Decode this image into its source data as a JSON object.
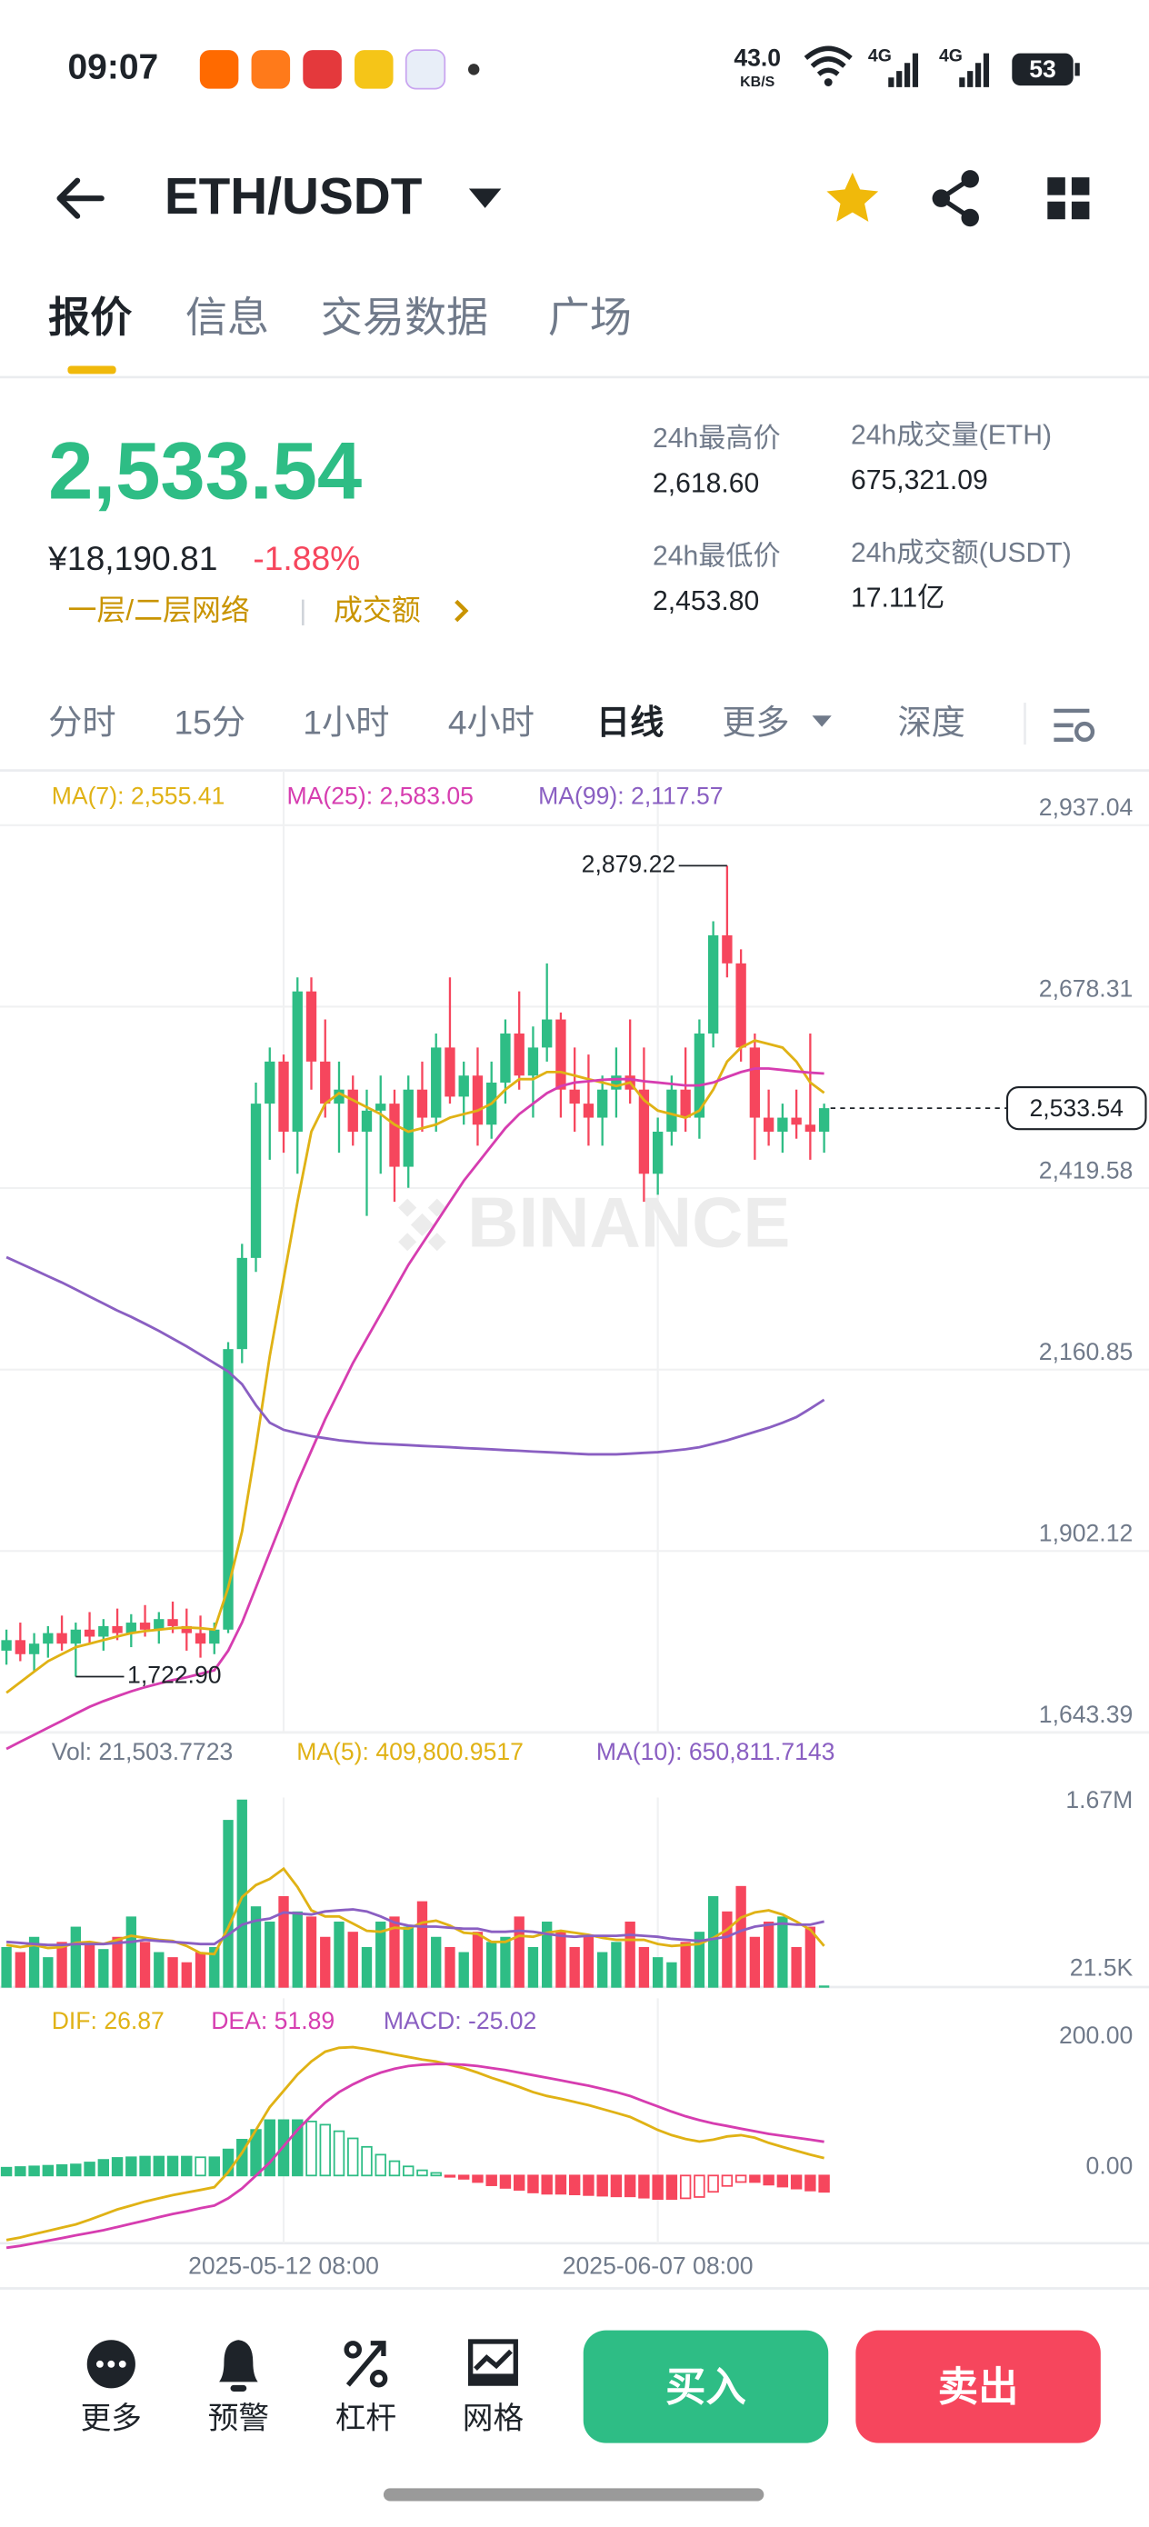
{
  "status_bar": {
    "time": "09:07",
    "net_speed": "43.0",
    "net_unit": "KB/S",
    "signal_1": "4G",
    "signal_2": "4G",
    "battery": "53"
  },
  "header": {
    "pair": "ETH/USDT"
  },
  "tabs": [
    "报价",
    "信息",
    "交易数据",
    "广场"
  ],
  "ticker": {
    "price": "2,533.54",
    "price_cny": "¥18,190.81",
    "change": "-1.88%",
    "tags": [
      "一层/二层网络",
      "成交额"
    ],
    "stats": [
      {
        "label": "24h最高价",
        "value": "2,618.60"
      },
      {
        "label": "24h成交量(ETH)",
        "value": "675,321.09"
      },
      {
        "label": "24h最低价",
        "value": "2,453.80"
      },
      {
        "label": "24h成交额(USDT)",
        "value": "17.11亿"
      }
    ]
  },
  "intervals": [
    "分时",
    "15分",
    "1小时",
    "4小时",
    "日线",
    "更多",
    "深度"
  ],
  "chart_data": [
    {
      "type": "candlestick",
      "watermark": "BINANCE",
      "up_color": "#2ebd85",
      "down_color": "#f6465d",
      "grid": true,
      "ylim": [
        1643.39,
        2937.04
      ],
      "yticks": [
        {
          "value": 2937.04,
          "label": "2,937.04"
        },
        {
          "value": 2678.31,
          "label": "2,678.31"
        },
        {
          "value": 2419.58,
          "label": "2,419.58"
        },
        {
          "value": 2160.85,
          "label": "2,160.85"
        },
        {
          "value": 1902.12,
          "label": "1,902.12"
        },
        {
          "value": 1643.39,
          "label": "1,643.39"
        }
      ],
      "xticks": [
        {
          "value": 20,
          "label": "2025-05-12 08:00"
        },
        {
          "value": 47,
          "label": "2025-06-07 08:00"
        }
      ],
      "ohlc": [
        [
          1760,
          1790,
          1740,
          1775
        ],
        [
          1775,
          1800,
          1745,
          1755
        ],
        [
          1755,
          1785,
          1730,
          1770
        ],
        [
          1770,
          1795,
          1750,
          1785
        ],
        [
          1785,
          1810,
          1760,
          1770
        ],
        [
          1770,
          1800,
          1722.9,
          1790
        ],
        [
          1790,
          1815,
          1770,
          1780
        ],
        [
          1780,
          1805,
          1760,
          1795
        ],
        [
          1795,
          1820,
          1775,
          1785
        ],
        [
          1785,
          1812,
          1765,
          1800
        ],
        [
          1800,
          1825,
          1780,
          1790
        ],
        [
          1790,
          1815,
          1770,
          1805
        ],
        [
          1805,
          1830,
          1785,
          1795
        ],
        [
          1795,
          1820,
          1760,
          1785
        ],
        [
          1785,
          1810,
          1750,
          1770
        ],
        [
          1770,
          1800,
          1755,
          1790
        ],
        [
          1790,
          2200,
          1785,
          2190
        ],
        [
          2190,
          2340,
          2170,
          2320
        ],
        [
          2320,
          2570,
          2300,
          2540
        ],
        [
          2540,
          2620,
          2460,
          2600
        ],
        [
          2600,
          2610,
          2470,
          2500
        ],
        [
          2500,
          2720,
          2440,
          2700
        ],
        [
          2700,
          2720,
          2560,
          2600
        ],
        [
          2600,
          2660,
          2520,
          2540
        ],
        [
          2540,
          2600,
          2470,
          2560
        ],
        [
          2560,
          2580,
          2480,
          2500
        ],
        [
          2500,
          2560,
          2380,
          2530
        ],
        [
          2530,
          2580,
          2440,
          2540
        ],
        [
          2540,
          2560,
          2400,
          2450
        ],
        [
          2450,
          2580,
          2420,
          2560
        ],
        [
          2560,
          2600,
          2500,
          2520
        ],
        [
          2520,
          2640,
          2500,
          2620
        ],
        [
          2620,
          2720,
          2540,
          2550
        ],
        [
          2550,
          2600,
          2510,
          2580
        ],
        [
          2580,
          2620,
          2480,
          2510
        ],
        [
          2510,
          2600,
          2490,
          2570
        ],
        [
          2570,
          2660,
          2540,
          2640
        ],
        [
          2640,
          2700,
          2560,
          2580
        ],
        [
          2580,
          2650,
          2520,
          2620
        ],
        [
          2620,
          2740,
          2600,
          2660
        ],
        [
          2660,
          2670,
          2520,
          2560
        ],
        [
          2560,
          2620,
          2500,
          2540
        ],
        [
          2540,
          2610,
          2480,
          2520
        ],
        [
          2520,
          2580,
          2480,
          2560
        ],
        [
          2560,
          2620,
          2520,
          2580
        ],
        [
          2580,
          2660,
          2540,
          2560
        ],
        [
          2560,
          2620,
          2400,
          2440
        ],
        [
          2440,
          2520,
          2410,
          2500
        ],
        [
          2500,
          2580,
          2480,
          2560
        ],
        [
          2560,
          2620,
          2500,
          2520
        ],
        [
          2520,
          2660,
          2490,
          2640
        ],
        [
          2640,
          2800,
          2620,
          2780
        ],
        [
          2780,
          2879.22,
          2720,
          2740
        ],
        [
          2740,
          2760,
          2600,
          2620
        ],
        [
          2620,
          2640,
          2460,
          2520
        ],
        [
          2520,
          2560,
          2480,
          2500
        ],
        [
          2500,
          2540,
          2470,
          2520
        ],
        [
          2520,
          2560,
          2490,
          2510
        ],
        [
          2510,
          2640,
          2460,
          2500
        ],
        [
          2500,
          2540,
          2470,
          2533.54
        ]
      ],
      "last_price_label": "2,533.54",
      "annotations": [
        {
          "label": "2,879.22",
          "value": 2879.22,
          "of": "high"
        },
        {
          "label": "1,722.90",
          "value": 1722.9,
          "of": "low"
        }
      ],
      "series": [
        {
          "name": "MA(7)",
          "color": "#e0b215",
          "current_label": "2,555.41",
          "values": [
            1700,
            1715,
            1730,
            1745,
            1755,
            1765,
            1770,
            1775,
            1780,
            1785,
            1788,
            1790,
            1792,
            1793,
            1792,
            1790,
            1850,
            1930,
            2050,
            2180,
            2290,
            2400,
            2500,
            2540,
            2555,
            2545,
            2535,
            2525,
            2510,
            2500,
            2505,
            2510,
            2520,
            2525,
            2530,
            2540,
            2560,
            2575,
            2575,
            2585,
            2585,
            2580,
            2575,
            2570,
            2565,
            2570,
            2545,
            2530,
            2525,
            2520,
            2530,
            2560,
            2600,
            2620,
            2630,
            2625,
            2620,
            2600,
            2570,
            2555.41
          ]
        },
        {
          "name": "MA(25)",
          "color": "#d63db0",
          "current_label": "2,583.05",
          "values": [
            1620,
            1630,
            1640,
            1650,
            1660,
            1670,
            1680,
            1688,
            1695,
            1702,
            1708,
            1713,
            1718,
            1722,
            1727,
            1732,
            1760,
            1800,
            1850,
            1900,
            1950,
            2000,
            2045,
            2090,
            2130,
            2170,
            2205,
            2240,
            2275,
            2310,
            2340,
            2370,
            2400,
            2430,
            2455,
            2480,
            2505,
            2525,
            2540,
            2555,
            2565,
            2570,
            2572,
            2574,
            2575,
            2575,
            2572,
            2570,
            2568,
            2566,
            2566,
            2570,
            2578,
            2585,
            2590,
            2590,
            2588,
            2586,
            2584,
            2583.05
          ]
        },
        {
          "name": "MA(99)",
          "color": "#8a5fc2",
          "current_label": "2,117.57",
          "values": [
            2321,
            2312,
            2303,
            2294,
            2285,
            2275,
            2265,
            2255,
            2245,
            2236,
            2226,
            2216,
            2205,
            2194,
            2182,
            2170,
            2158,
            2140,
            2110,
            2085,
            2075,
            2070,
            2066,
            2063,
            2060,
            2058,
            2056,
            2055,
            2054,
            2053,
            2052,
            2051,
            2050,
            2049,
            2048,
            2047,
            2046,
            2045,
            2044,
            2043,
            2042,
            2041,
            2040,
            2040,
            2040,
            2041,
            2042,
            2043,
            2045,
            2047,
            2050,
            2055,
            2060,
            2066,
            2072,
            2078,
            2085,
            2093,
            2105,
            2117.57
          ]
        }
      ]
    },
    {
      "type": "bar",
      "up_color": "#2ebd85",
      "down_color": "#f6465d",
      "grid": false,
      "ylim": [
        0,
        1870000
      ],
      "yticks": [
        {
          "value": 1670000,
          "label": "1.67M"
        },
        {
          "value": 21500,
          "label": "21.5K"
        }
      ],
      "series": [
        {
          "name": "Vol",
          "color": "#707a8a",
          "current_label": "21,503.7723",
          "values": [
            400000,
            350000,
            500000,
            300000,
            450000,
            600000,
            420000,
            380000,
            500000,
            700000,
            450000,
            350000,
            300000,
            250000,
            350000,
            400000,
            1650000,
            1850000,
            800000,
            650000,
            900000,
            750000,
            700000,
            500000,
            650000,
            550000,
            400000,
            650000,
            700000,
            600000,
            850000,
            500000,
            400000,
            350000,
            550000,
            450000,
            500000,
            700000,
            400000,
            650000,
            550000,
            400000,
            500000,
            350000,
            450000,
            650000,
            400000,
            300000,
            250000,
            450000,
            550000,
            900000,
            750000,
            1000000,
            500000,
            650000,
            700000,
            400000,
            600000,
            21503.7723
          ]
        },
        {
          "name": "MA(5)",
          "color": "#e0b215",
          "current_label": "409,800.9517",
          "values": [
            420000,
            400000,
            420000,
            390000,
            400000,
            440000,
            450000,
            430000,
            470000,
            510000,
            490000,
            470000,
            460000,
            410000,
            340000,
            330000,
            590000,
            890000,
            1010000,
            1070000,
            1170000,
            990000,
            760000,
            700000,
            700000,
            630000,
            560000,
            550000,
            590000,
            580000,
            640000,
            660000,
            610000,
            540000,
            530000,
            450000,
            450000,
            510000,
            500000,
            540000,
            560000,
            540000,
            520000,
            490000,
            470000,
            470000,
            470000,
            430000,
            410000,
            420000,
            430000,
            490000,
            570000,
            690000,
            740000,
            760000,
            720000,
            650000,
            570000,
            409800.9517
          ]
        },
        {
          "name": "MA(10)",
          "color": "#8a5fc2",
          "current_label": "650,811.7143",
          "values": [
            450000,
            440000,
            430000,
            420000,
            420000,
            430000,
            430000,
            430000,
            440000,
            450000,
            470000,
            460000,
            450000,
            440000,
            430000,
            430000,
            520000,
            620000,
            660000,
            680000,
            740000,
            730000,
            720000,
            750000,
            760000,
            770000,
            750000,
            700000,
            640000,
            610000,
            600000,
            600000,
            590000,
            580000,
            580000,
            550000,
            550000,
            560000,
            550000,
            530000,
            510000,
            500000,
            510000,
            510000,
            510000,
            520000,
            510000,
            500000,
            480000,
            470000,
            460000,
            480000,
            500000,
            560000,
            600000,
            620000,
            630000,
            620000,
            620000,
            650811.7143
          ]
        }
      ]
    },
    {
      "type": "macd",
      "up_color": "#2ebd85",
      "down_color": "#f6465d",
      "grid": false,
      "ylim": [
        -104,
        272
      ],
      "yticks": [
        {
          "value": 200,
          "label": "200.00"
        },
        {
          "value": 0,
          "label": "0.00"
        }
      ],
      "series": [
        {
          "name": "DIF",
          "color": "#e0b215",
          "current_label": "26.87",
          "values": [
            -99,
            -95,
            -90,
            -85,
            -80,
            -75,
            -68,
            -60,
            -52,
            -46,
            -40,
            -35,
            -30,
            -26,
            -22,
            -18,
            5,
            35,
            70,
            105,
            130,
            155,
            175,
            190,
            196,
            197,
            194,
            190,
            186,
            182,
            178,
            175,
            170,
            165,
            158,
            150,
            143,
            136,
            128,
            122,
            118,
            113,
            108,
            102,
            96,
            90,
            80,
            70,
            62,
            56,
            52,
            55,
            60,
            62,
            58,
            50,
            44,
            38,
            32,
            26.87
          ]
        },
        {
          "name": "DEA",
          "color": "#d63db0",
          "current_label": "51.89",
          "values": [
            -111,
            -108,
            -104,
            -100,
            -96,
            -92,
            -88,
            -84,
            -79,
            -74,
            -69,
            -64,
            -59,
            -55,
            -50,
            -46,
            -35,
            -20,
            0,
            20,
            45,
            70,
            92,
            112,
            128,
            140,
            150,
            158,
            164,
            168,
            170,
            171,
            171,
            170,
            168,
            165,
            162,
            158,
            154,
            150,
            146,
            142,
            138,
            133,
            128,
            122,
            114,
            106,
            98,
            91,
            85,
            80,
            76,
            72,
            68,
            64,
            61,
            58,
            55,
            51.89
          ]
        },
        {
          "name": "MACD",
          "color": "#8a5fc2",
          "current_label": "-25.02",
          "values": [
            12,
            13,
            14,
            15,
            16,
            17,
            20,
            24,
            27,
            28,
            29,
            29,
            29,
            29,
            28,
            28,
            40,
            55,
            70,
            85,
            85,
            85,
            83,
            78,
            68,
            57,
            44,
            32,
            22,
            14,
            8,
            4,
            -1,
            -5,
            -10,
            -15,
            -19,
            -22,
            -26,
            -28,
            -28,
            -29,
            -30,
            -31,
            -32,
            -32,
            -34,
            -36,
            -36,
            -35,
            -33,
            -25,
            -16,
            -10,
            -10,
            -14,
            -17,
            -20,
            -23,
            -25.02
          ]
        }
      ]
    }
  ],
  "bottom_bar": {
    "actions": [
      "更多",
      "预警",
      "杠杆",
      "网格"
    ],
    "buy": "买入",
    "sell": "卖出"
  }
}
